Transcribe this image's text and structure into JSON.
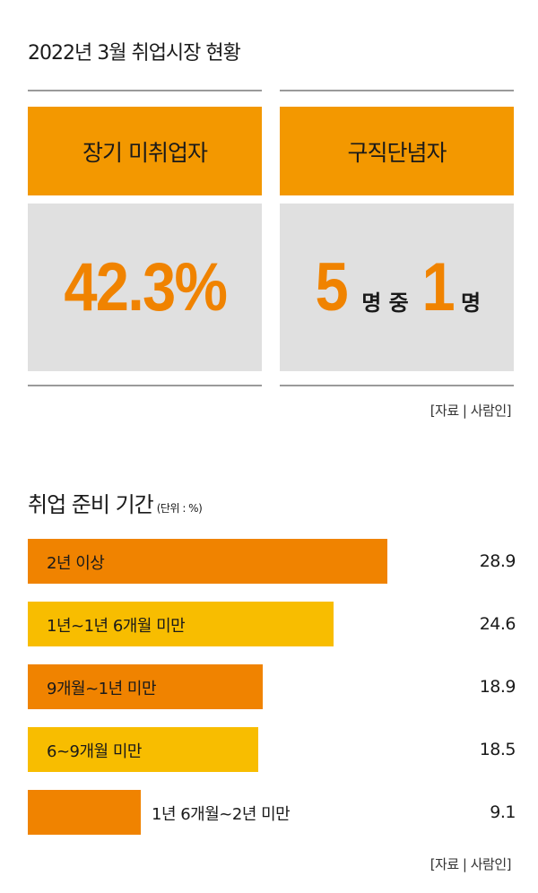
{
  "top_title": "2022년 3월 취업시장 현황",
  "cards": [
    {
      "header": "장기 미취업자",
      "value": "42.3%"
    },
    {
      "header": "구직단념자",
      "value_parts": [
        "5",
        "명 중",
        "1",
        "명"
      ]
    }
  ],
  "source_top": "[자료 | 사람인]",
  "chart_data": {
    "type": "bar",
    "title": "취업 준비 기간",
    "unit_note": "(단위 : %)",
    "orientation": "horizontal",
    "categories": [
      "2년 이상",
      "1년~1년 6개월 미만",
      "9개월~1년 미만",
      "6~9개월 미만",
      "1년 6개월~2년 미만"
    ],
    "values": [
      28.9,
      24.6,
      18.9,
      18.5,
      9.1
    ],
    "value_labels": [
      "28.9",
      "24.6",
      "18.9",
      "18.5",
      "9.1"
    ],
    "colors": [
      "#f08300",
      "#f8bd00",
      "#f08300",
      "#f8bd00",
      "#f08300"
    ],
    "xlim": [
      0,
      28.9
    ]
  },
  "source_bottom": "[자료 | 사람인]"
}
